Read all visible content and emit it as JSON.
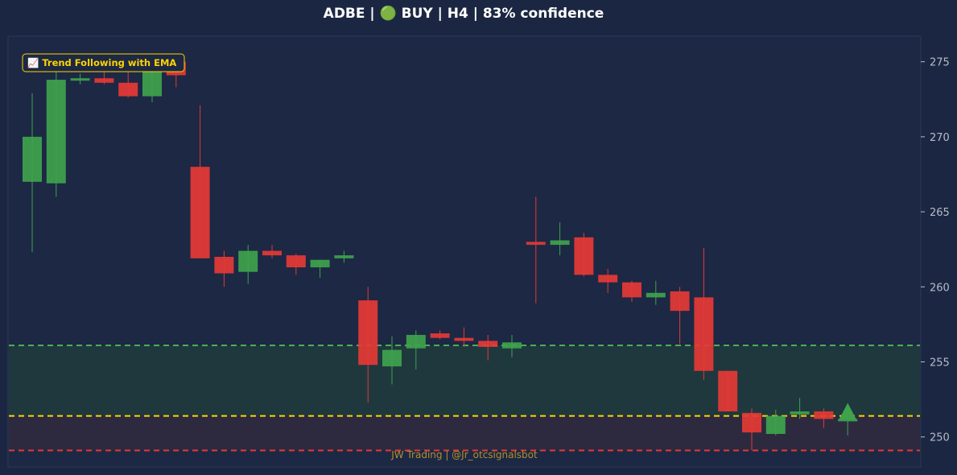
{
  "title": "ADBE | 🟢 BUY | H4 | 83% confidence",
  "strategy_badge": "📈 Trend Following with EMA",
  "watermark": "JW Trading | @Jr_otcsignalsbot",
  "colors": {
    "background": "#1b2742",
    "bull": "#3fa34d",
    "bear": "#e53935",
    "take_profit": "#4caf50",
    "entry": "#ffd400",
    "stop_loss": "#e53935",
    "badge_text": "#ffd400",
    "axis_text": "#b7bcc8"
  },
  "chart_data": {
    "type": "candlestick",
    "ylim": [
      248.0,
      276.7
    ],
    "yticks": [
      250,
      255,
      260,
      265,
      270,
      275
    ],
    "grid": false,
    "levels": {
      "take_profit": 256.1,
      "entry": 251.4,
      "stop_loss": 249.1
    },
    "signal": "BUY",
    "signal_marker": {
      "index": 34,
      "value": 251.3
    },
    "candles": [
      {
        "o": 267.0,
        "h": 272.9,
        "l": 262.3,
        "c": 270.0
      },
      {
        "o": 266.9,
        "h": 274.8,
        "l": 266.0,
        "c": 273.8
      },
      {
        "o": 273.8,
        "h": 274.2,
        "l": 273.5,
        "c": 273.9
      },
      {
        "o": 273.9,
        "h": 274.3,
        "l": 273.5,
        "c": 273.6
      },
      {
        "o": 273.6,
        "h": 274.3,
        "l": 272.6,
        "c": 272.7
      },
      {
        "o": 272.7,
        "h": 275.3,
        "l": 272.3,
        "c": 274.7
      },
      {
        "o": 275.0,
        "h": 275.4,
        "l": 273.3,
        "c": 274.1
      },
      {
        "o": 268.0,
        "h": 272.1,
        "l": 261.9,
        "c": 261.9
      },
      {
        "o": 262.0,
        "h": 262.4,
        "l": 260.0,
        "c": 260.9
      },
      {
        "o": 261.0,
        "h": 262.8,
        "l": 260.2,
        "c": 262.4
      },
      {
        "o": 262.4,
        "h": 262.8,
        "l": 261.9,
        "c": 262.1
      },
      {
        "o": 262.1,
        "h": 262.2,
        "l": 260.8,
        "c": 261.3
      },
      {
        "o": 261.3,
        "h": 261.8,
        "l": 260.6,
        "c": 261.8
      },
      {
        "o": 261.9,
        "h": 262.4,
        "l": 261.6,
        "c": 262.1
      },
      {
        "o": 259.1,
        "h": 260.0,
        "l": 252.3,
        "c": 254.8
      },
      {
        "o": 254.7,
        "h": 256.7,
        "l": 253.5,
        "c": 255.8
      },
      {
        "o": 255.9,
        "h": 257.1,
        "l": 254.5,
        "c": 256.8
      },
      {
        "o": 256.9,
        "h": 257.1,
        "l": 256.5,
        "c": 256.6
      },
      {
        "o": 256.6,
        "h": 257.3,
        "l": 256.0,
        "c": 256.4
      },
      {
        "o": 256.4,
        "h": 256.8,
        "l": 255.1,
        "c": 256.0
      },
      {
        "o": 255.9,
        "h": 256.8,
        "l": 255.3,
        "c": 256.3
      },
      {
        "o": 263.0,
        "h": 266.0,
        "l": 258.9,
        "c": 262.8
      },
      {
        "o": 262.8,
        "h": 264.3,
        "l": 262.1,
        "c": 263.1
      },
      {
        "o": 263.3,
        "h": 263.6,
        "l": 260.7,
        "c": 260.8
      },
      {
        "o": 260.8,
        "h": 261.2,
        "l": 259.6,
        "c": 260.3
      },
      {
        "o": 260.3,
        "h": 260.4,
        "l": 259.0,
        "c": 259.3
      },
      {
        "o": 259.3,
        "h": 260.4,
        "l": 258.8,
        "c": 259.6
      },
      {
        "o": 259.7,
        "h": 260.0,
        "l": 256.2,
        "c": 258.4
      },
      {
        "o": 259.3,
        "h": 262.6,
        "l": 253.8,
        "c": 254.4
      },
      {
        "o": 254.4,
        "h": 254.4,
        "l": 251.7,
        "c": 251.7
      },
      {
        "o": 251.6,
        "h": 251.9,
        "l": 249.1,
        "c": 250.3
      },
      {
        "o": 250.2,
        "h": 251.8,
        "l": 250.1,
        "c": 251.4
      },
      {
        "o": 251.5,
        "h": 252.6,
        "l": 251.2,
        "c": 251.7
      },
      {
        "o": 251.7,
        "h": 251.9,
        "l": 250.6,
        "c": 251.2
      },
      {
        "o": 251.2,
        "h": 251.5,
        "l": 250.1,
        "c": 251.2
      }
    ]
  }
}
